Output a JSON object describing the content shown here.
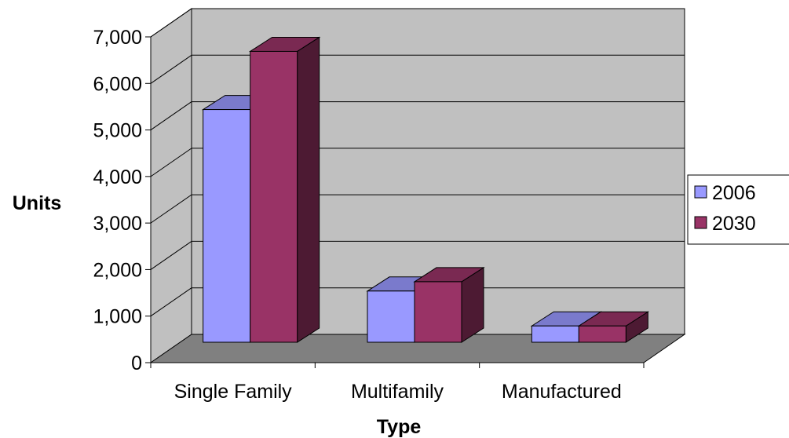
{
  "chart_data": {
    "type": "bar",
    "categories": [
      "Single Family",
      "Multifamily",
      "Manufactured"
    ],
    "series": [
      {
        "name": "2006",
        "values": [
          5000,
          1100,
          350
        ],
        "color": "#9999ff",
        "top_color": "#7a7acc",
        "side_color": "#6666aa"
      },
      {
        "name": "2030",
        "values": [
          6250,
          1300,
          350
        ],
        "color": "#993366",
        "top_color": "#7a2952",
        "side_color": "#4d1a33"
      }
    ],
    "xlabel": "Type",
    "ylabel": "Units",
    "ylim": [
      0,
      7000
    ],
    "y_ticks": [
      "0",
      "1,000",
      "2,000",
      "3,000",
      "4,000",
      "5,000",
      "6,000",
      "7,000"
    ],
    "legend_position": "right",
    "grid": true,
    "three_d": true,
    "wall_color": "#c0c0c0",
    "floor_color": "#808080"
  }
}
